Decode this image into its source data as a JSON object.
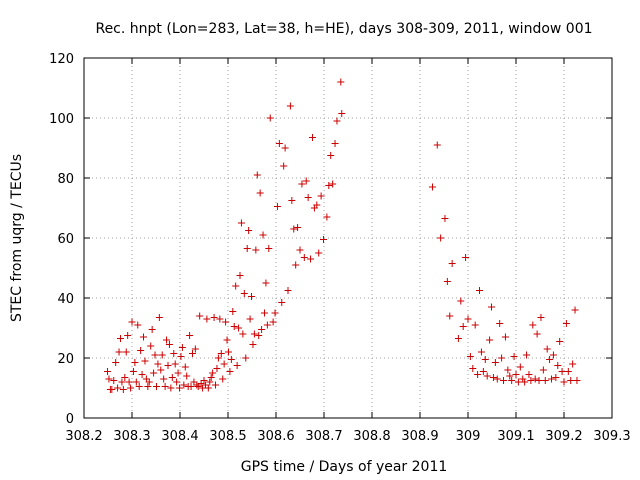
{
  "chart_data": {
    "type": "scatter",
    "title": "Rec. hnpt (Lon=283, Lat=38, h=HE), days 308-309, 2011, window 001",
    "xlabel": "GPS time / Days of year 2011",
    "ylabel": "STEC from uqrg / TECUs",
    "xlim": [
      308.2,
      309.3
    ],
    "ylim": [
      0,
      120
    ],
    "xticks": [
      308.2,
      308.3,
      308.4,
      308.5,
      308.6,
      308.7,
      308.8,
      308.9,
      309.0,
      309.1,
      309.2,
      309.3
    ],
    "xtick_labels": [
      "308.2",
      "308.3",
      "308.4",
      "308.5",
      "308.6",
      "308.7",
      "308.8",
      "308.9",
      "309",
      "309.1",
      "309.2",
      "309.3"
    ],
    "yticks": [
      0,
      20,
      40,
      60,
      80,
      100,
      120
    ],
    "ytick_labels": [
      "0",
      "20",
      "40",
      "60",
      "80",
      "100",
      "120"
    ],
    "grid": true,
    "marker": "plus",
    "marker_color": "#cc0000",
    "series": [
      {
        "points": [
          [
            308.249,
            15.5
          ],
          [
            308.252,
            13.0
          ],
          [
            308.255,
            9.5
          ],
          [
            308.258,
            9.5
          ],
          [
            308.262,
            12.5
          ],
          [
            308.266,
            18.5
          ],
          [
            308.27,
            10.0
          ],
          [
            308.273,
            22.0
          ],
          [
            308.276,
            26.5
          ],
          [
            308.279,
            12.0
          ],
          [
            308.282,
            9.5
          ],
          [
            308.285,
            13.5
          ],
          [
            308.288,
            22.0
          ],
          [
            308.291,
            27.5
          ],
          [
            308.294,
            12.0
          ],
          [
            308.297,
            10.0
          ],
          [
            308.3,
            32.0
          ],
          [
            308.303,
            15.5
          ],
          [
            308.306,
            18.5
          ],
          [
            308.309,
            12.0
          ],
          [
            308.312,
            31.0
          ],
          [
            308.315,
            10.5
          ],
          [
            308.318,
            22.5
          ],
          [
            308.321,
            14.5
          ],
          [
            308.324,
            27.0
          ],
          [
            308.327,
            19.0
          ],
          [
            308.33,
            13.0
          ],
          [
            308.333,
            10.5
          ],
          [
            308.336,
            12.0
          ],
          [
            308.339,
            24.0
          ],
          [
            308.342,
            29.5
          ],
          [
            308.345,
            15.0
          ],
          [
            308.348,
            21.0
          ],
          [
            308.351,
            10.5
          ],
          [
            308.354,
            18.0
          ],
          [
            308.357,
            33.5
          ],
          [
            308.36,
            16.0
          ],
          [
            308.363,
            21.0
          ],
          [
            308.366,
            13.0
          ],
          [
            308.369,
            10.5
          ],
          [
            308.372,
            26.0
          ],
          [
            308.375,
            17.5
          ],
          [
            308.378,
            24.5
          ],
          [
            308.381,
            10.0
          ],
          [
            308.384,
            13.5
          ],
          [
            308.387,
            21.5
          ],
          [
            308.39,
            18.0
          ],
          [
            308.393,
            12.0
          ],
          [
            308.396,
            15.0
          ],
          [
            308.399,
            10.0
          ],
          [
            308.402,
            20.5
          ],
          [
            308.405,
            23.5
          ],
          [
            308.408,
            11.0
          ],
          [
            308.411,
            17.0
          ],
          [
            308.414,
            14.0
          ],
          [
            308.417,
            10.5
          ],
          [
            308.42,
            27.5
          ],
          [
            308.423,
            10.5
          ],
          [
            308.426,
            21.5
          ],
          [
            308.429,
            12.0
          ],
          [
            308.432,
            23.0
          ],
          [
            308.435,
            11.0
          ],
          [
            308.438,
            10.5
          ],
          [
            308.441,
            34.0
          ],
          [
            308.444,
            11.5
          ],
          [
            308.447,
            10.0
          ],
          [
            308.45,
            12.5
          ],
          [
            308.453,
            11.0
          ],
          [
            308.456,
            33.0
          ],
          [
            308.459,
            10.0
          ],
          [
            308.462,
            12.0
          ],
          [
            308.465,
            13.5
          ],
          [
            308.468,
            15.0
          ],
          [
            308.471,
            33.5
          ],
          [
            308.474,
            11.0
          ],
          [
            308.477,
            16.5
          ],
          [
            308.48,
            20.0
          ],
          [
            308.483,
            33.0
          ],
          [
            308.486,
            21.5
          ],
          [
            308.489,
            13.0
          ],
          [
            308.492,
            18.0
          ],
          [
            308.495,
            32.0
          ],
          [
            308.498,
            26.0
          ],
          [
            308.501,
            22.0
          ],
          [
            308.504,
            15.5
          ],
          [
            308.507,
            19.5
          ],
          [
            308.51,
            35.5
          ],
          [
            308.513,
            30.5
          ],
          [
            308.516,
            44.0
          ],
          [
            308.519,
            17.5
          ],
          [
            308.522,
            30.0
          ],
          [
            308.525,
            47.5
          ],
          [
            308.528,
            65.0
          ],
          [
            308.531,
            28.0
          ],
          [
            308.534,
            41.5
          ],
          [
            308.537,
            20.0
          ],
          [
            308.54,
            56.5
          ],
          [
            308.543,
            62.5
          ],
          [
            308.546,
            33.0
          ],
          [
            308.549,
            40.5
          ],
          [
            308.552,
            24.5
          ],
          [
            308.555,
            28.0
          ],
          [
            308.558,
            56.0
          ],
          [
            308.561,
            81.0
          ],
          [
            308.564,
            27.5
          ],
          [
            308.567,
            75.0
          ],
          [
            308.57,
            29.5
          ],
          [
            308.573,
            61.0
          ],
          [
            308.576,
            35.0
          ],
          [
            308.579,
            45.0
          ],
          [
            308.582,
            31.0
          ],
          [
            308.585,
            56.5
          ],
          [
            308.588,
            100.0
          ],
          [
            308.594,
            32.0
          ],
          [
            308.598,
            35.0
          ],
          [
            308.603,
            70.5
          ],
          [
            308.607,
            91.5
          ],
          [
            308.612,
            38.5
          ],
          [
            308.616,
            84.0
          ],
          [
            308.619,
            90.0
          ],
          [
            308.625,
            42.5
          ],
          [
            308.63,
            104.0
          ],
          [
            308.633,
            72.5
          ],
          [
            308.637,
            63.0
          ],
          [
            308.641,
            51.0
          ],
          [
            308.645,
            63.5
          ],
          [
            308.65,
            56.0
          ],
          [
            308.654,
            78.0
          ],
          [
            308.659,
            53.5
          ],
          [
            308.663,
            79.0
          ],
          [
            308.667,
            73.5
          ],
          [
            308.672,
            53.0
          ],
          [
            308.676,
            93.5
          ],
          [
            308.68,
            70.0
          ],
          [
            308.685,
            71.0
          ],
          [
            308.689,
            55.0
          ],
          [
            308.694,
            74.0
          ],
          [
            308.699,
            59.5
          ],
          [
            308.706,
            67.0
          ],
          [
            308.71,
            77.5
          ],
          [
            308.714,
            87.5
          ],
          [
            308.718,
            78.0
          ],
          [
            308.723,
            91.5
          ],
          [
            308.727,
            99.0
          ],
          [
            308.737,
            101.5
          ],
          [
            308.735,
            112.0
          ],
          [
            308.926,
            77.0
          ],
          [
            308.936,
            91.0
          ],
          [
            308.943,
            60.0
          ],
          [
            308.952,
            66.5
          ],
          [
            308.957,
            45.5
          ],
          [
            308.962,
            34.0
          ],
          [
            308.967,
            51.5
          ],
          [
            308.98,
            26.5
          ],
          [
            308.985,
            39.0
          ],
          [
            308.99,
            30.5
          ],
          [
            308.995,
            53.5
          ],
          [
            309.0,
            33.0
          ],
          [
            309.005,
            20.5
          ],
          [
            309.01,
            16.5
          ],
          [
            309.015,
            31.0
          ],
          [
            309.02,
            14.5
          ],
          [
            309.024,
            42.5
          ],
          [
            309.028,
            22.0
          ],
          [
            309.032,
            15.5
          ],
          [
            309.036,
            19.5
          ],
          [
            309.04,
            14.0
          ],
          [
            309.045,
            26.0
          ],
          [
            309.049,
            37.0
          ],
          [
            309.053,
            13.5
          ],
          [
            309.057,
            18.5
          ],
          [
            309.061,
            13.0
          ],
          [
            309.066,
            31.5
          ],
          [
            309.07,
            20.0
          ],
          [
            309.074,
            12.5
          ],
          [
            309.078,
            27.0
          ],
          [
            309.083,
            16.0
          ],
          [
            309.087,
            14.0
          ],
          [
            309.091,
            12.5
          ],
          [
            309.096,
            20.5
          ],
          [
            309.1,
            14.5
          ],
          [
            309.105,
            12.0
          ],
          [
            309.109,
            17.0
          ],
          [
            309.114,
            13.0
          ],
          [
            309.118,
            12.0
          ],
          [
            309.122,
            21.0
          ],
          [
            309.127,
            14.5
          ],
          [
            309.131,
            12.5
          ],
          [
            309.135,
            31.0
          ],
          [
            309.14,
            13.0
          ],
          [
            309.144,
            28.0
          ],
          [
            309.148,
            12.5
          ],
          [
            309.152,
            33.5
          ],
          [
            309.157,
            16.0
          ],
          [
            309.161,
            12.5
          ],
          [
            309.165,
            23.0
          ],
          [
            309.17,
            19.5
          ],
          [
            309.174,
            13.0
          ],
          [
            309.178,
            21.0
          ],
          [
            309.183,
            13.5
          ],
          [
            309.187,
            17.5
          ],
          [
            309.191,
            25.5
          ],
          [
            309.196,
            15.5
          ],
          [
            309.2,
            12.0
          ],
          [
            309.205,
            31.5
          ],
          [
            309.209,
            15.5
          ],
          [
            309.214,
            12.5
          ],
          [
            309.218,
            18.0
          ],
          [
            309.223,
            36.0
          ],
          [
            309.227,
            12.5
          ]
        ]
      }
    ]
  }
}
